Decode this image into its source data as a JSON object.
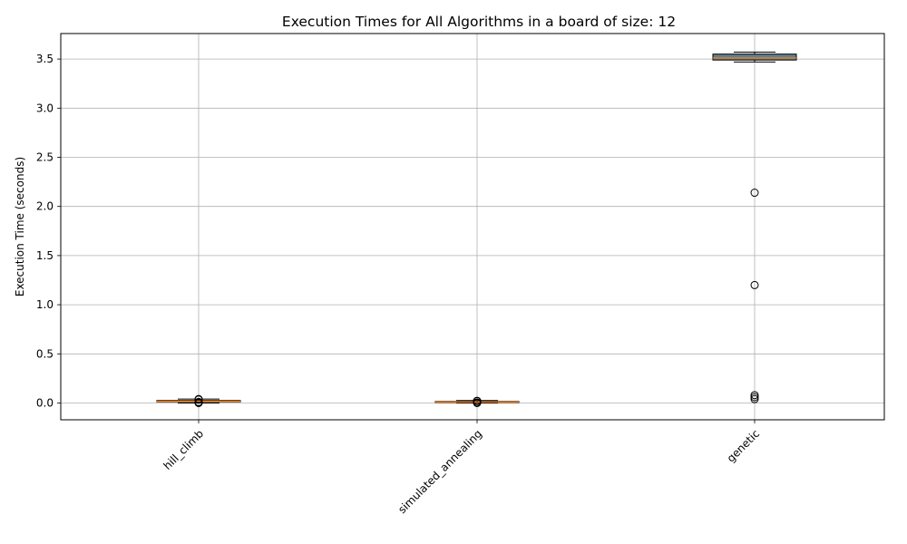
{
  "chart_data": {
    "type": "box",
    "title": "Execution Times for All Algorithms in a board of size: 12",
    "xlabel": "",
    "ylabel": "Execution Time (seconds)",
    "ylim": [
      -0.17,
      3.76
    ],
    "yticks": [
      "0.0",
      "0.5",
      "1.0",
      "1.5",
      "2.0",
      "2.5",
      "3.0",
      "3.5"
    ],
    "grid": true,
    "categories": [
      "hill_climb",
      "simulated_annealing",
      "genetic"
    ],
    "boxes": [
      {
        "name": "hill_climb",
        "min": 0.0,
        "q1": 0.012,
        "median": 0.018,
        "q3": 0.026,
        "max": 0.04,
        "outliers": [
          0.0,
          0.005,
          0.01,
          0.035,
          0.04
        ]
      },
      {
        "name": "simulated_annealing",
        "min": 0.0,
        "q1": 0.005,
        "median": 0.01,
        "q3": 0.016,
        "max": 0.025,
        "outliers": [
          0.0,
          0.005,
          0.018,
          0.022
        ]
      },
      {
        "name": "genetic",
        "min": 3.47,
        "q1": 3.49,
        "median": 3.51,
        "q3": 3.55,
        "max": 3.57,
        "outliers": [
          2.14,
          1.2,
          0.08,
          0.06,
          0.04
        ]
      }
    ],
    "colors": {
      "box_edge": "#000000",
      "median": "#ff7f0e",
      "grid": "#b0b0b0",
      "genetic_fill": "#5f7f92"
    }
  }
}
